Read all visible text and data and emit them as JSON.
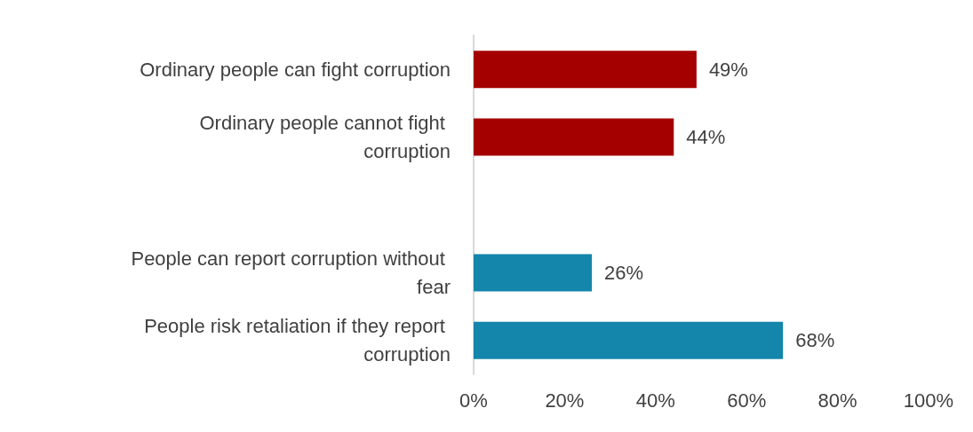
{
  "chart_data": {
    "type": "bar",
    "orientation": "horizontal",
    "categories": [
      "Ordinary people can fight corruption",
      "Ordinary people cannot fight corruption",
      null,
      "People can report corruption without fear",
      "People risk retaliation if they report corruption"
    ],
    "values": [
      49,
      44,
      null,
      26,
      68
    ],
    "colors": [
      "#a50000",
      "#a50000",
      null,
      "#1485ab",
      "#1485ab"
    ],
    "value_labels": [
      "49%",
      "44%",
      null,
      "26%",
      "68%"
    ],
    "xlim": [
      0,
      100
    ],
    "xticks": [
      {
        "value": 0,
        "label": "0%"
      },
      {
        "value": 20,
        "label": "20%"
      },
      {
        "value": 40,
        "label": "40%"
      },
      {
        "value": 60,
        "label": "60%"
      },
      {
        "value": 80,
        "label": "80%"
      },
      {
        "value": 100,
        "label": "100%"
      }
    ],
    "grid": false
  }
}
